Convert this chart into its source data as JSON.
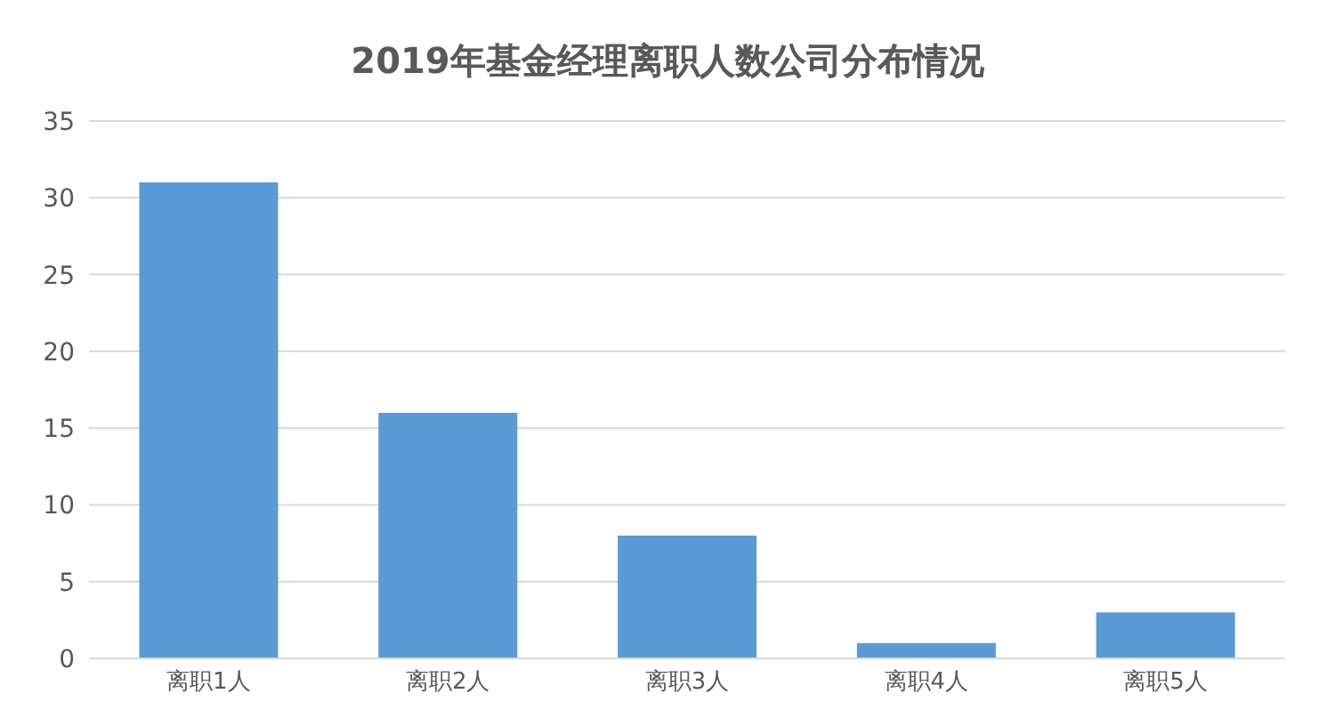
{
  "chart_data": {
    "type": "bar",
    "title": "2019年基金经理离职人数公司分布情况",
    "categories": [
      "离职1人",
      "离职2人",
      "离职3人",
      "离职4人",
      "离职5人"
    ],
    "values": [
      31,
      16,
      8,
      1,
      3
    ],
    "color": "#5b9bd5",
    "ylim": [
      0,
      35
    ],
    "yticks": [
      0,
      5,
      10,
      15,
      20,
      25,
      30,
      35
    ],
    "grid": "y"
  }
}
